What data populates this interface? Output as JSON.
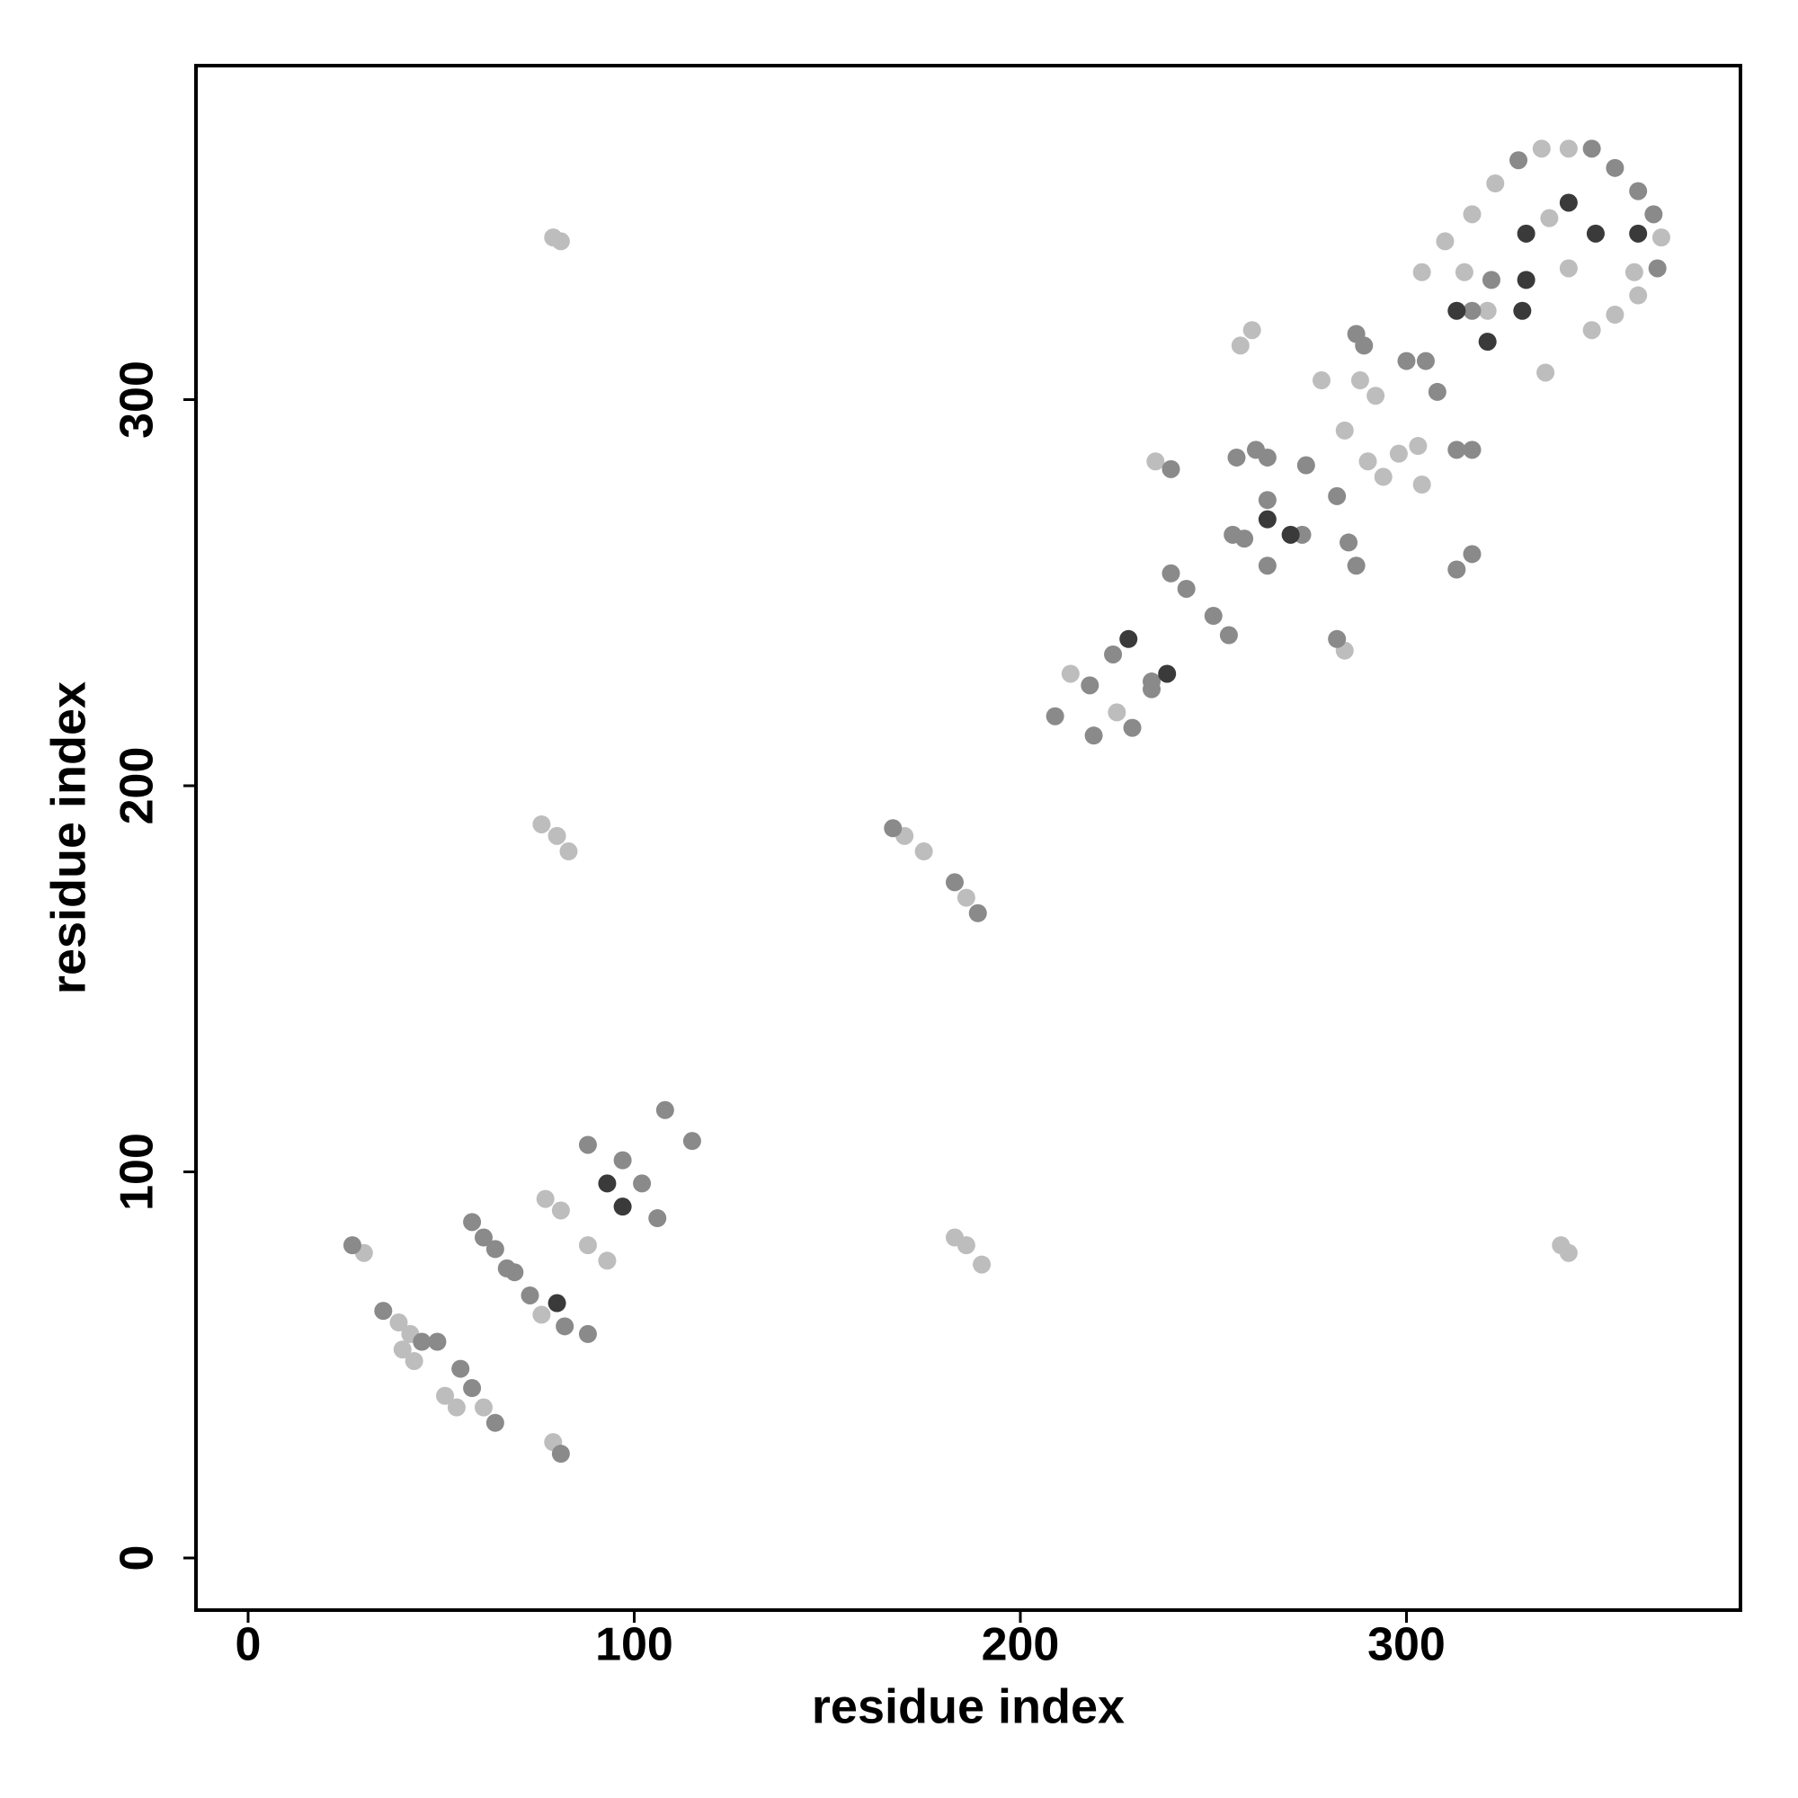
{
  "chart_data": {
    "type": "scatter",
    "xlabel": "residue index",
    "ylabel": "residue index",
    "xlim": [
      -13.5,
      386.5
    ],
    "ylim": [
      -13.5,
      386.5
    ],
    "xticks": [
      0,
      100,
      200,
      300
    ],
    "yticks": [
      0,
      100,
      200,
      300
    ],
    "series": [
      {
        "color": "#bdbdbd",
        "x": [
          30,
          39,
          42,
          40,
          43,
          51,
          54,
          61,
          76,
          77,
          81,
          88,
          93,
          79,
          79,
          81,
          76,
          80,
          83,
          170,
          175,
          186,
          183,
          186,
          190,
          340,
          342,
          213,
          225,
          235,
          257,
          260,
          278,
          288,
          284,
          290,
          294,
          298,
          303,
          304,
          292,
          284,
          304,
          310,
          317,
          323,
          335,
          342,
          366,
          360,
          354,
          348,
          336,
          342,
          315,
          321,
          337,
          359
        ],
        "y": [
          79,
          61,
          58,
          54,
          51,
          42,
          39,
          39,
          63,
          93,
          90,
          81,
          77,
          30,
          342,
          341,
          190,
          187,
          183,
          187,
          183,
          171,
          83,
          81,
          76,
          81,
          79,
          229,
          219,
          284,
          314,
          318,
          305,
          305,
          292,
          284,
          280,
          286,
          288,
          278,
          301,
          235,
          333,
          341,
          348,
          356,
          365,
          365,
          342,
          327,
          322,
          318,
          307,
          334,
          333,
          323,
          347,
          333
        ]
      },
      {
        "color": "#8a8a8a",
        "x": [
          27,
          35,
          45,
          49,
          55,
          58,
          64,
          58,
          61,
          64,
          67,
          69,
          73,
          82,
          88,
          88,
          97,
          102,
          106,
          108,
          115,
          167,
          183,
          189,
          81,
          209,
          218,
          219,
          224,
          229,
          234,
          234,
          239,
          239,
          243,
          250,
          254,
          255,
          258,
          256,
          261,
          264,
          264,
          264,
          273,
          274,
          282,
          282,
          285,
          287,
          287,
          289,
          300,
          305,
          308,
          317,
          313,
          317,
          313,
          317,
          329,
          348,
          354,
          360,
          364,
          365,
          322
        ],
        "y": [
          81,
          64,
          56,
          56,
          49,
          44,
          35,
          87,
          83,
          80,
          75,
          74,
          68,
          60,
          58,
          107,
          103,
          97,
          88,
          116,
          108,
          189,
          175,
          167,
          27,
          218,
          226,
          213,
          234,
          215,
          227,
          225,
          282,
          255,
          251,
          244,
          239,
          265,
          264,
          285,
          287,
          285,
          274,
          257,
          265,
          283,
          275,
          238,
          263,
          257,
          317,
          314,
          310,
          310,
          302,
          323,
          287,
          287,
          256,
          260,
          362,
          365,
          360,
          354,
          348,
          334,
          331
        ]
      },
      {
        "color": "#3a3a3a",
        "x": [
          80,
          93,
          97,
          228,
          238,
          264,
          270,
          313,
          321,
          331,
          342,
          349,
          331,
          330,
          360
        ],
        "y": [
          66,
          97,
          91,
          238,
          229,
          269,
          265,
          323,
          315,
          343,
          351,
          343,
          331,
          323,
          343
        ]
      }
    ]
  }
}
